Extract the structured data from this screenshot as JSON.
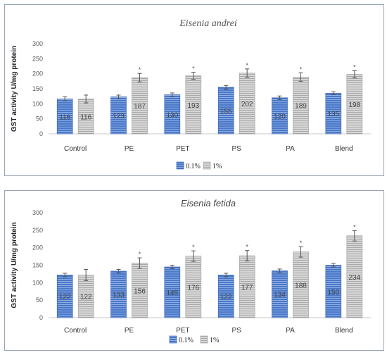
{
  "colors": {
    "series_01": "#4a78c8",
    "series_1": "#c8c8c8",
    "error": "#555555",
    "grid": "#dddddd",
    "panel_border": "#9aa4b8"
  },
  "chart_data": [
    {
      "type": "bar",
      "title": "Eisenia andrei",
      "ylabel": "GST activity U/mg protein",
      "xlabel": "",
      "ylim": [
        0,
        300
      ],
      "yticks": [
        0,
        50,
        100,
        150,
        200,
        250,
        300
      ],
      "grid": false,
      "legend_position": "bottom",
      "categories": [
        "Control",
        "PE",
        "PET",
        "PS",
        "PA",
        "Blend"
      ],
      "series": [
        {
          "name": "0.1%",
          "values": [
            116,
            123,
            130,
            155,
            120,
            135
          ],
          "errors": [
            7,
            6,
            6,
            6,
            6,
            5
          ],
          "significance": [
            "",
            "",
            "",
            "",
            "",
            ""
          ]
        },
        {
          "name": "1%",
          "values": [
            116,
            187,
            193,
            202,
            189,
            198
          ],
          "errors": [
            13,
            14,
            12,
            14,
            14,
            12
          ],
          "significance": [
            "",
            "*",
            "*",
            "*",
            "*",
            "*"
          ]
        }
      ]
    },
    {
      "type": "bar",
      "title": "Eisenia fetida",
      "ylabel": "GST activity U/mg protein",
      "xlabel": "",
      "ylim": [
        0,
        300
      ],
      "yticks": [
        0,
        50,
        100,
        150,
        200,
        250,
        300
      ],
      "grid": false,
      "legend_position": "bottom",
      "categories": [
        "Control",
        "PE",
        "PET",
        "PS",
        "PA",
        "Blend"
      ],
      "series": [
        {
          "name": "0.1%",
          "values": [
            122,
            133,
            145,
            122,
            134,
            150
          ],
          "errors": [
            5,
            5,
            5,
            5,
            5,
            5
          ],
          "significance": [
            "",
            "",
            "",
            "",
            "",
            ""
          ]
        },
        {
          "name": "1%",
          "values": [
            122,
            156,
            176,
            177,
            188,
            234
          ],
          "errors": [
            16,
            15,
            15,
            15,
            15,
            15
          ],
          "significance": [
            "",
            "*",
            "*",
            "*",
            "*",
            "*"
          ]
        }
      ]
    }
  ]
}
